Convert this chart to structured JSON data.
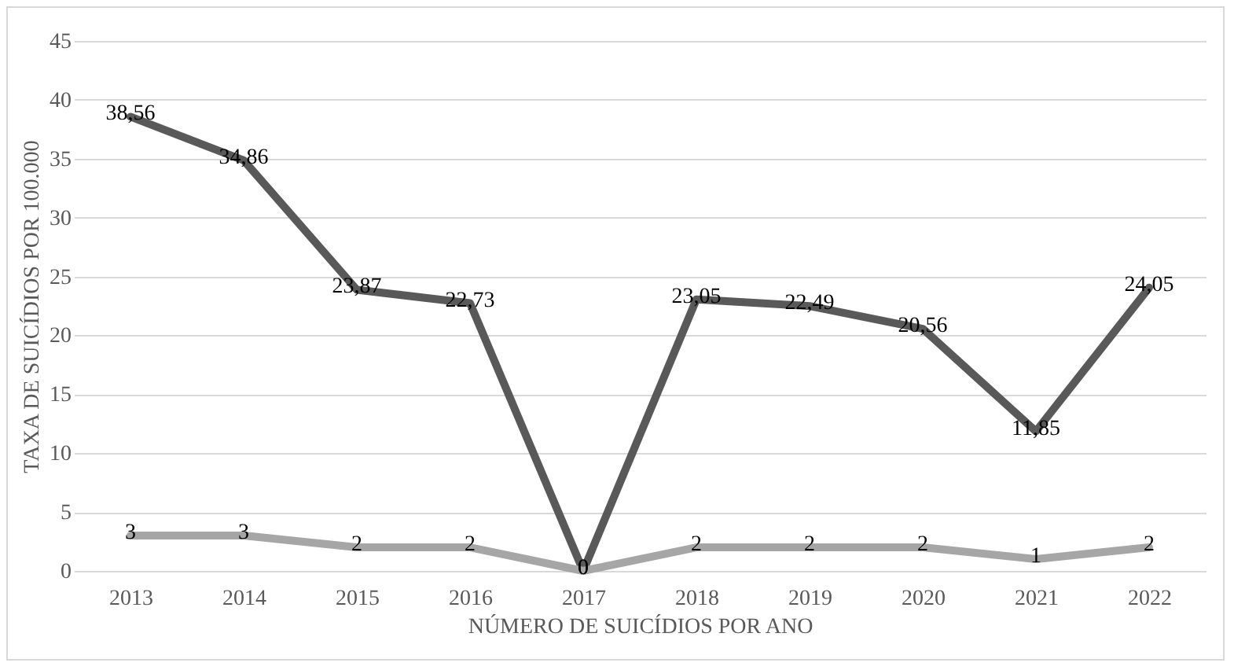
{
  "chart_data": {
    "type": "line",
    "xlabel": "NÚMERO DE SUICÍDIOS POR ANO",
    "ylabel": "TAXA DE SUICÍDIOS POR 100.000",
    "categories": [
      "2013",
      "2014",
      "2015",
      "2016",
      "2017",
      "2018",
      "2019",
      "2020",
      "2021",
      "2022"
    ],
    "series": [
      {
        "color": "#595959",
        "values": [
          38.56,
          34.86,
          23.87,
          22.73,
          0,
          23.05,
          22.49,
          20.56,
          11.85,
          24.05
        ],
        "value_labels": [
          "38,56",
          "34,86",
          "23,87",
          "22,73",
          "0",
          "23,05",
          "22,49",
          "20,56",
          "11,85",
          "24,05"
        ]
      },
      {
        "color": "#a6a6a6",
        "values": [
          3,
          3,
          2,
          2,
          0,
          2,
          2,
          2,
          1,
          2
        ],
        "value_labels": [
          "3",
          "3",
          "2",
          "2",
          "0",
          "2",
          "2",
          "2",
          "1",
          "2"
        ]
      }
    ],
    "ylim": [
      0,
      45
    ],
    "yticks": [
      0,
      5,
      10,
      15,
      20,
      25,
      30,
      35,
      40,
      45
    ],
    "grid": "y",
    "legend": false,
    "marker": "none",
    "line_style": "solid"
  }
}
